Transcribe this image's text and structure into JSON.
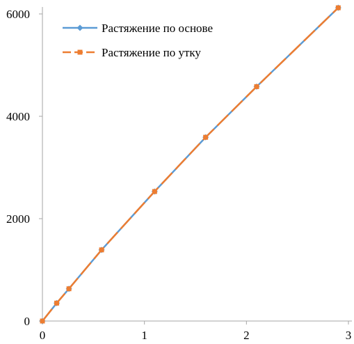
{
  "chart_data": {
    "type": "line",
    "title": "",
    "xlabel": "",
    "ylabel": "",
    "xlim": [
      0,
      3
    ],
    "ylim": [
      0,
      6000
    ],
    "x_ticks": [
      "0",
      "1",
      "2",
      "3"
    ],
    "y_ticks": [
      "0",
      "2000",
      "4000",
      "6000"
    ],
    "grid": false,
    "legend_position": "top-left",
    "series": [
      {
        "name": "Растяжение по основе",
        "color": "#5B9BD5",
        "marker": "diamond",
        "points": [
          [
            0,
            0
          ],
          [
            0.14,
            350
          ],
          [
            0.26,
            630
          ],
          [
            0.58,
            1390
          ],
          [
            1.1,
            2530
          ],
          [
            1.6,
            3590
          ],
          [
            2.1,
            4580
          ],
          [
            2.9,
            6120
          ]
        ]
      },
      {
        "name": "Растяжение по утку",
        "color": "#ED7D31",
        "marker": "square",
        "points": [
          [
            0,
            0
          ],
          [
            0.14,
            350
          ],
          [
            0.26,
            630
          ],
          [
            0.58,
            1390
          ],
          [
            1.1,
            2530
          ],
          [
            1.6,
            3590
          ],
          [
            2.1,
            4580
          ],
          [
            2.9,
            6120
          ]
        ]
      }
    ]
  }
}
